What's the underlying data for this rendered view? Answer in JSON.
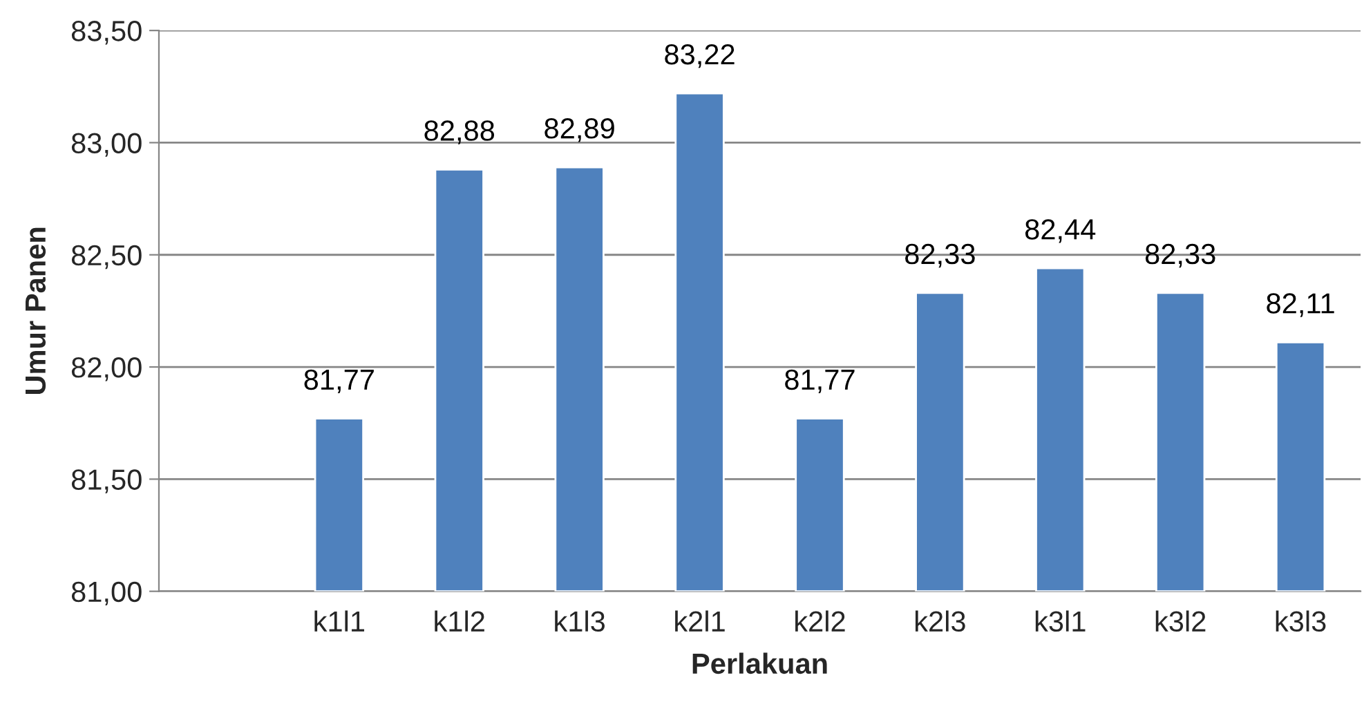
{
  "chart_data": {
    "type": "bar",
    "xlabel": "Perlakuan",
    "ylabel": "Umur Panen",
    "categories": [
      null,
      "k1l1",
      "k1l2",
      "k1l3",
      "k2l1",
      "k2l2",
      "k2l3",
      "k3l1",
      "k3l2",
      "k3l3"
    ],
    "values": [
      null,
      81.77,
      82.88,
      82.89,
      83.22,
      81.77,
      82.33,
      82.44,
      82.33,
      82.11
    ],
    "value_labels": [
      null,
      "81,77",
      "82,88",
      "82,89",
      "83,22",
      "81,77",
      "82,33",
      "82,44",
      "82,33",
      "82,11"
    ],
    "color": "#4f81bd",
    "ylim": [
      81,
      83.5
    ],
    "yticks": [
      {
        "value": 81,
        "label": "81,00"
      },
      {
        "value": 81.5,
        "label": "81,50"
      },
      {
        "value": 82,
        "label": "82,00"
      },
      {
        "value": 82.5,
        "label": "82,50"
      },
      {
        "value": 83,
        "label": "83,00"
      },
      {
        "value": 83.5,
        "label": "83,50"
      }
    ],
    "grid": "y",
    "legend": false
  }
}
